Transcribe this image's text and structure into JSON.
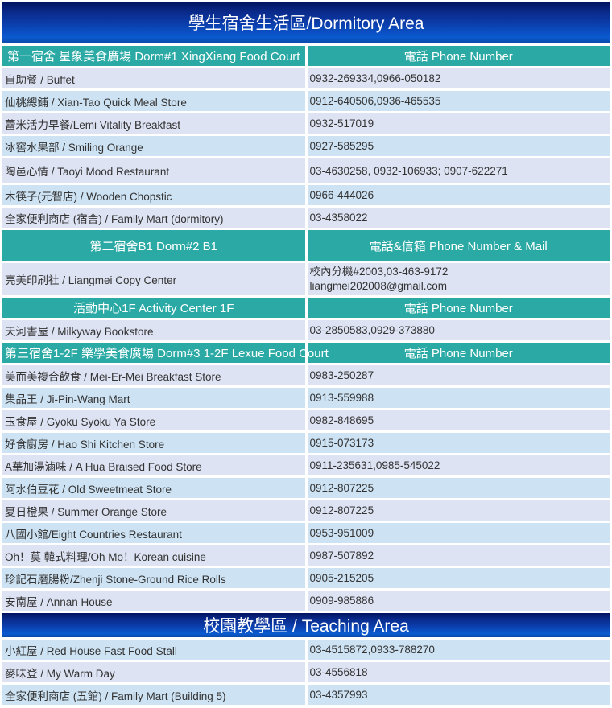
{
  "sections": [
    {
      "type": "banner",
      "title": "學生宿舍生活區/Dormitory Area",
      "h": 52
    },
    {
      "type": "header",
      "left": "第一宿舍 星象美食廣場 Dorm#1 XingXiang Food Court",
      "right": "電話 Phone Number",
      "h": 25
    },
    {
      "type": "row",
      "left": "自助餐 / Buffet",
      "right": "0932-269334,0966-050182",
      "h": 25
    },
    {
      "type": "row",
      "left": "仙桃總鋪 / Xian-Tao Quick Meal Store",
      "right": " 0912-640506,0936-465535",
      "h": 25
    },
    {
      "type": "row",
      "left": "蕾米活力早餐/Lemi Vitality Breakfast",
      "right": "0932-517019",
      "h": 25
    },
    {
      "type": "row",
      "left": "冰窖水果部 / Smiling Orange",
      "right": "0927-585295",
      "h": 25
    },
    {
      "type": "row",
      "left": "陶邑心情 / Taoyi Mood Restaurant",
      "right": "03-4630258, 0932-106933; 0907-622271",
      "h": 30
    },
    {
      "type": "row",
      "left": "木筷子(元智店) / Wooden Chopstic",
      "right": "0966-444026",
      "h": 25
    },
    {
      "type": "row",
      "left": "全家便利商店 (宿舍) / Family Mart (dormitory)",
      "right": "03-4358022",
      "h": 25
    },
    {
      "type": "header",
      "left": "第二宿舍B1  Dorm#2 B1",
      "right": "電話&信箱 Phone Number & Mail",
      "h": 38
    },
    {
      "type": "row",
      "left": "亮美印刷社 / Liangmei Copy Center",
      "right": "校內分機#2003,03-463-9172\nliangmei202008@gmail.com",
      "h": 40
    },
    {
      "type": "header",
      "left": "活動中心1F Activity Center 1F",
      "right": "電話 Phone Number",
      "h": 25
    },
    {
      "type": "row",
      "left": "天河書屋 /  Milkyway Bookstore",
      "right": "03-2850583,0929-373880",
      "h": 25
    },
    {
      "type": "header",
      "left": "第三宿舍1-2F 樂學美食廣場 Dorm#3 1-2F Lexue Food Court",
      "right": "電話 Phone Number",
      "h": 25
    },
    {
      "type": "row",
      "left": "美而美複合飲食 / Mei-Er-Mei Breakfast Store",
      "right": "0983-250287",
      "h": 25
    },
    {
      "type": "row",
      "left": "集品王 / Ji-Pin-Wang Mart",
      "right": "0913-559988",
      "h": 25
    },
    {
      "type": "row",
      "left": "玉食屋 / Gyoku Syoku Ya Store",
      "right": "0982-848695",
      "h": 25
    },
    {
      "type": "row",
      "left": "好食廚房 / Hao Shi Kitchen Store",
      "right": "0915-073173",
      "h": 25
    },
    {
      "type": "row",
      "left": "A華加湯滷味 / A Hua Braised Food Store",
      "right": "0911-235631,0985-545022",
      "h": 25
    },
    {
      "type": "row",
      "left": "阿水伯豆花 / Old Sweetmeat Store",
      "right": "0912-807225",
      "h": 25
    },
    {
      "type": "row",
      "left": "夏日橙果 / Summer Orange Store",
      "right": "0912-807225",
      "h": 25
    },
    {
      "type": "row",
      "left": "八國小館/Eight Countries Restaurant",
      "right": "0953-951009",
      "h": 25
    },
    {
      "type": "row",
      "left": "Oh！莫 韓式料理/Oh Mo！Korean cuisine",
      "right": "0987-507892",
      "h": 25
    },
    {
      "type": "row",
      "left": "珍記石磨腸粉/Zhenji Stone-Ground Rice Rolls",
      "right": "0905-215205",
      "h": 25
    },
    {
      "type": "row",
      "left": "安南屋 / Annan House",
      "right": "0909-985886",
      "h": 25
    },
    {
      "type": "banner",
      "title": "校園教學區 / Teaching Area",
      "h": 25
    },
    {
      "type": "row",
      "left": "小紅屋 / Red House Fast Food Stall",
      "right": "03-4515872,0933-788270",
      "h": 25,
      "alt": "b"
    },
    {
      "type": "row",
      "left": "麥味登 / My Warm Day",
      "right": "03-4556818",
      "h": 25,
      "alt": "a"
    },
    {
      "type": "row",
      "left": "全家便利商店 (五館) / Family Mart (Building 5)",
      "right": "03-4357993",
      "h": 25,
      "alt": "b"
    }
  ],
  "colors": {
    "header": "#2aa9a5",
    "row_a": "#dde3f3",
    "row_b": "#cde2f3",
    "banner": "#0b3fae"
  }
}
